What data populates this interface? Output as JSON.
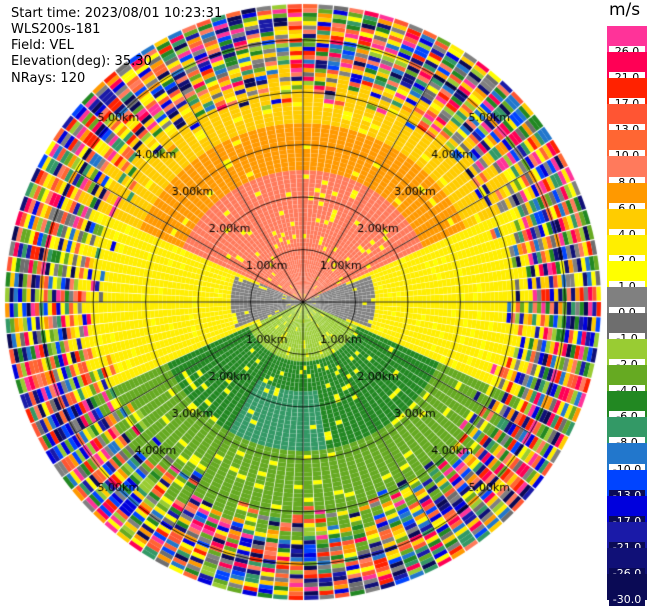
{
  "header": {
    "start_time": "Start time: 2023/08/01 10:23:31",
    "instrument": "WLS200s-181",
    "field": "Field: VEL",
    "elevation": "Elevation(deg): 35.30",
    "nrays": "NRays: 120"
  },
  "colorbar": {
    "unit": "m/s",
    "levels": [
      {
        "label": "26.0",
        "color": "#ff3399"
      },
      {
        "label": "21.0",
        "color": "#ff0055"
      },
      {
        "label": "17.0",
        "color": "#ff2200"
      },
      {
        "label": "13.0",
        "color": "#ff5533"
      },
      {
        "label": "10.0",
        "color": "#ff6633"
      },
      {
        "label": "8.0",
        "color": "#ff7a5c"
      },
      {
        "label": "6.0",
        "color": "#ff9900"
      },
      {
        "label": "4.0",
        "color": "#ffcc00"
      },
      {
        "label": "2.0",
        "color": "#ffee00"
      },
      {
        "label": "1.0",
        "color": "#ffff00"
      },
      {
        "label": "0.0",
        "color": "#808080"
      },
      {
        "label": "-1.0",
        "color": "#6e6e6e"
      },
      {
        "label": "-2.0",
        "color": "#99cc33"
      },
      {
        "label": "-4.0",
        "color": "#66aa22"
      },
      {
        "label": "-6.0",
        "color": "#228822"
      },
      {
        "label": "-8.0",
        "color": "#339966"
      },
      {
        "label": "-10.0",
        "color": "#2277cc"
      },
      {
        "label": "-13.0",
        "color": "#0044ff"
      },
      {
        "label": "-17.0",
        "color": "#0000dd"
      },
      {
        "label": "-21.0",
        "color": "#1a1aa8"
      },
      {
        "label": "-26.0",
        "color": "#101077"
      },
      {
        "label": "-30.0",
        "color": "#0a0a55"
      }
    ]
  },
  "range_rings": {
    "labels": [
      "1.00km",
      "2.00km",
      "3.00km",
      "4.00km",
      "5.00km"
    ]
  },
  "chart_data": {
    "type": "heatmap",
    "projection": "polar PPI",
    "field": "VEL",
    "units": "m/s",
    "nrays": 120,
    "range_rings_km": [
      1,
      2,
      3,
      4,
      5
    ],
    "max_range_km": 5,
    "description_levels_by_sector": [
      {
        "azimuth_deg_from": 300,
        "azimuth_deg_to": 60,
        "range_km_from": 0.3,
        "range_km_to": 4.0,
        "value_ms": 8.0
      },
      {
        "azimuth_deg_from": 60,
        "azimuth_deg_to": 120,
        "range_km_from": 0.3,
        "range_km_to": 4.0,
        "value_ms": 2.0
      },
      {
        "azimuth_deg_from": 240,
        "azimuth_deg_to": 300,
        "range_km_from": 0.3,
        "range_km_to": 4.0,
        "value_ms": 2.0
      },
      {
        "azimuth_deg_from": 120,
        "azimuth_deg_to": 240,
        "range_km_from": 0.3,
        "range_km_to": 4.0,
        "value_ms": -6.0
      }
    ]
  }
}
